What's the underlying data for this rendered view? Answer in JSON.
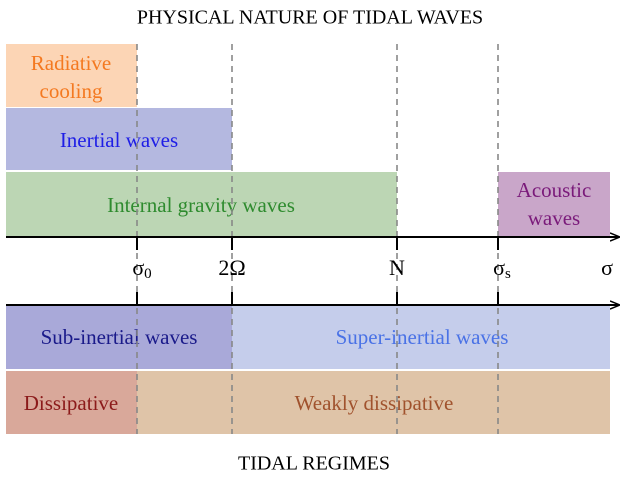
{
  "header": {
    "title": "PHYSICAL NATURE OF TIDAL WAVES"
  },
  "waves": {
    "radiative_cooling": [
      "Radiative",
      "cooling"
    ],
    "inertial": "Inertial waves",
    "internal_gravity": "Internal gravity waves",
    "acoustic": [
      "Acoustic",
      "waves"
    ]
  },
  "axis_labels": [
    {
      "symbol": "σ",
      "subscript": "0"
    },
    {
      "symbol": "2Ω"
    },
    {
      "symbol": "N"
    },
    {
      "symbol": "σ",
      "subscript": "s"
    },
    {
      "symbol": "σ"
    }
  ],
  "regimes": {
    "sub_inertial": "Sub-inertial waves",
    "super_inertial": "Super-inertial waves",
    "dissipative": "Dissipative",
    "weakly_dissipative": "Weakly dissipative"
  },
  "footer": {
    "title": "TIDAL REGIMES"
  }
}
